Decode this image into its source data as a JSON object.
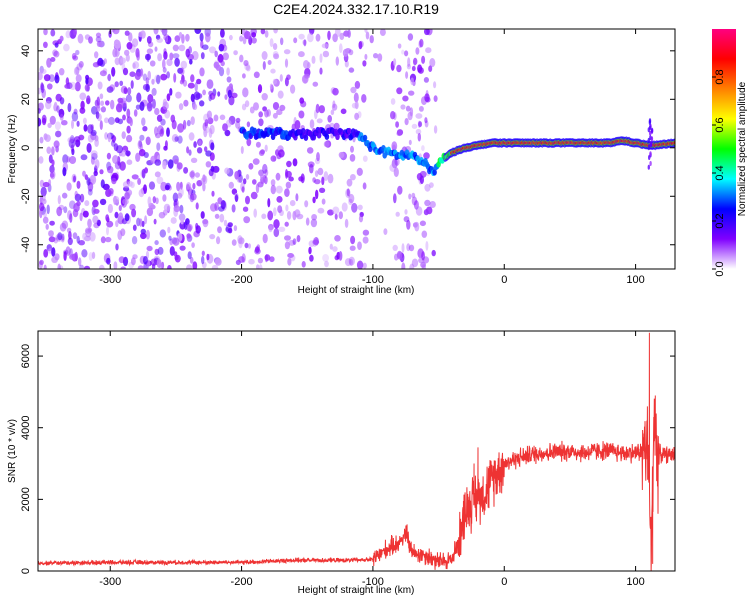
{
  "page": {
    "title": "C2E4.2024.332.17.10.R19"
  },
  "chart_data": [
    {
      "type": "heatmap",
      "title": "C2E4.2024.332.17.10.R19",
      "xlabel": "Height of straight line (km)",
      "ylabel": "Frequency (Hz)",
      "xlim": [
        -355,
        130
      ],
      "ylim": [
        -50,
        49
      ],
      "xticks": [
        -300,
        -200,
        -100,
        0,
        100
      ],
      "yticks": [
        -40,
        -20,
        0,
        20,
        40
      ],
      "colorbar": {
        "label": "Normalized spectral amplitude",
        "range": [
          0,
          1
        ],
        "ticks": [
          "0.0",
          "0.2",
          "0.4",
          "0.6",
          "0.8"
        ],
        "tick_values": [
          0,
          0.2,
          0.4,
          0.6,
          0.8
        ],
        "colormap": [
          "#ffffff",
          "#8000ff",
          "#0000ff",
          "#00ffff",
          "#00ff00",
          "#ffff00",
          "#ff8000",
          "#ff0000",
          "#ff0080"
        ]
      },
      "ridge": {
        "x": [
          -180,
          -170,
          -160,
          -140,
          -120,
          -110,
          -100,
          -90,
          -80,
          -70,
          -60,
          -55,
          -50,
          -45,
          -40,
          -35,
          -30,
          -20,
          -10,
          0,
          20,
          50,
          80,
          90,
          100,
          110,
          115,
          130
        ],
        "y": [
          6,
          6,
          5,
          6,
          6,
          5,
          0,
          -2,
          -3,
          -3,
          -7,
          -10,
          -7,
          -4,
          -2,
          -1,
          0,
          1,
          2,
          2,
          2,
          2,
          2,
          3,
          2,
          1,
          1,
          2
        ]
      }
    },
    {
      "type": "line",
      "xlabel": "Height of straight line (km)",
      "ylabel": "SNR (10 * v/v)",
      "xlim": [
        -355,
        130
      ],
      "ylim": [
        0,
        6700
      ],
      "xticks": [
        -300,
        -200,
        -100,
        0,
        100
      ],
      "yticks": [
        0,
        2000,
        4000,
        6000
      ],
      "color": "#ee3333",
      "series_profile": {
        "x": [
          -355,
          -300,
          -200,
          -160,
          -120,
          -100,
          -90,
          -80,
          -75,
          -70,
          -60,
          -50,
          -40,
          -35,
          -30,
          -25,
          -20,
          -15,
          -10,
          -5,
          0,
          10,
          20,
          30,
          40,
          50,
          60,
          70,
          80,
          90,
          100,
          105,
          108,
          110,
          112,
          114,
          116,
          120,
          130
        ],
        "y": [
          220,
          240,
          240,
          300,
          300,
          320,
          600,
          800,
          1050,
          500,
          450,
          250,
          320,
          800,
          1700,
          1900,
          2100,
          2200,
          2500,
          2800,
          3000,
          3150,
          3250,
          3300,
          3320,
          3350,
          3300,
          3350,
          3350,
          3300,
          3300,
          3350,
          3500,
          3000,
          250,
          4600,
          3300,
          3250,
          3250
        ]
      },
      "spikes": [
        {
          "x": 110.5,
          "y": 6650
        },
        {
          "x": 113,
          "y": 200
        },
        {
          "x": 115,
          "y": 4900
        },
        {
          "x": -20,
          "y": 3450
        },
        {
          "x": -23,
          "y": 3000
        },
        {
          "x": -74,
          "y": 1300
        }
      ]
    }
  ]
}
